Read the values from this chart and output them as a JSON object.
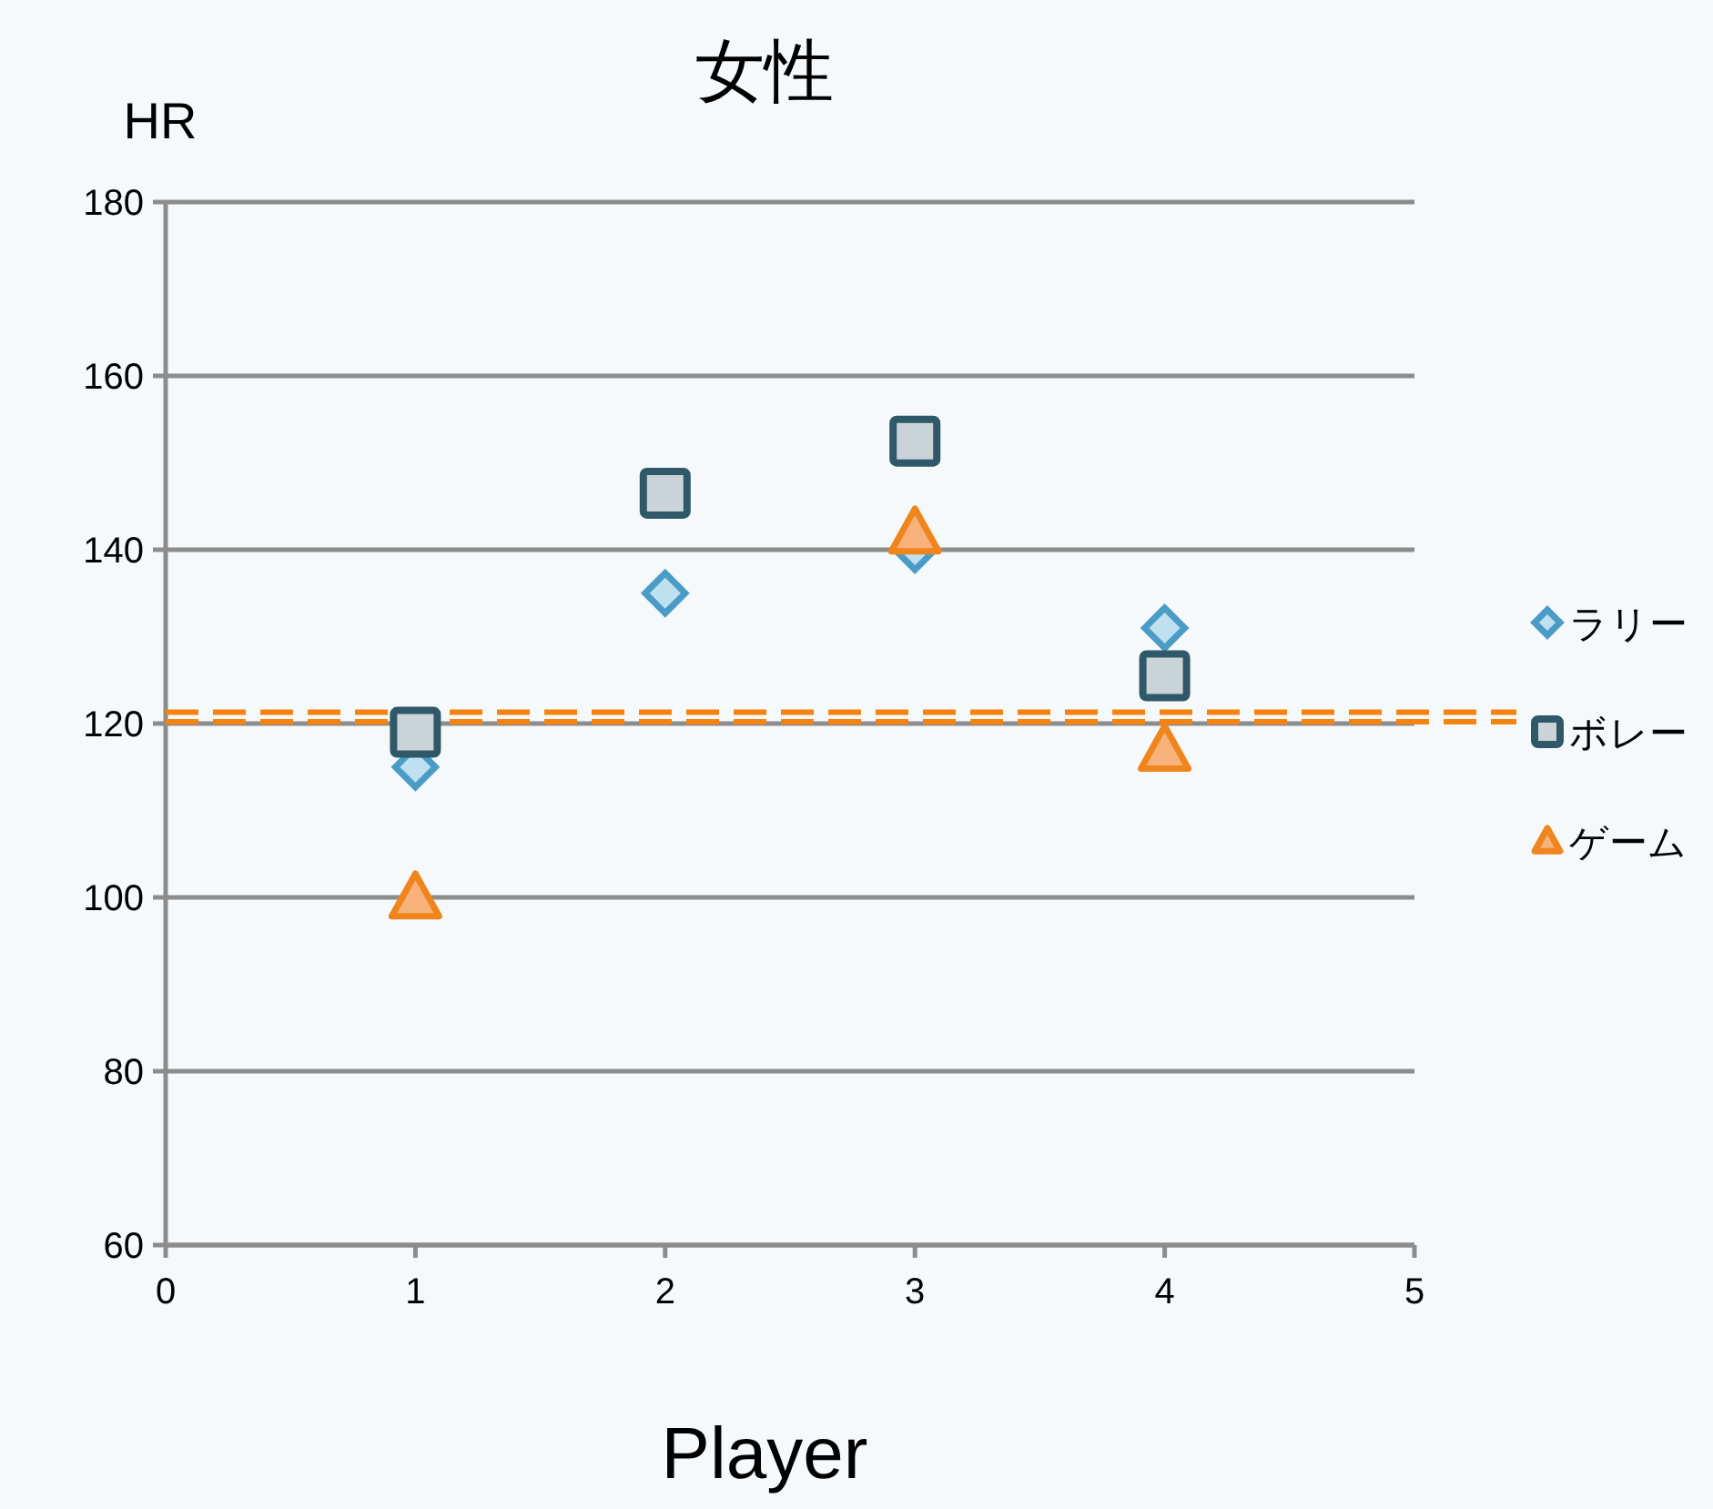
{
  "chart_data": {
    "type": "scatter",
    "title": "女性",
    "xlabel": "Player",
    "ylabel": "HR",
    "x": [
      1,
      2,
      3,
      4
    ],
    "series": [
      {
        "name": "ラリー",
        "color": "#4a9cc6",
        "marker": "diamond",
        "values": [
          115,
          135,
          140,
          131
        ]
      },
      {
        "name": "ボレー",
        "color": "#2f5868",
        "marker": "square",
        "values": [
          119,
          146.5,
          152.5,
          125.5
        ]
      },
      {
        "name": "ゲーム",
        "color": "#f0851e",
        "marker": "triangle",
        "values": [
          100,
          null,
          142,
          117
        ]
      }
    ],
    "xlim": [
      0,
      5
    ],
    "xticks": [
      0,
      1,
      2,
      3,
      4,
      5
    ],
    "ylim": [
      60,
      180
    ],
    "yticks": [
      60,
      80,
      100,
      120,
      140,
      160,
      180
    ],
    "ref_lines": [
      {
        "axis": "y",
        "value": 121.3,
        "color": "#f7830f",
        "line_style": "dashed"
      },
      {
        "axis": "y",
        "value": 120.2,
        "color": "#f7830f",
        "line_style": "dashed"
      }
    ],
    "grid": "y",
    "legend": "right"
  }
}
